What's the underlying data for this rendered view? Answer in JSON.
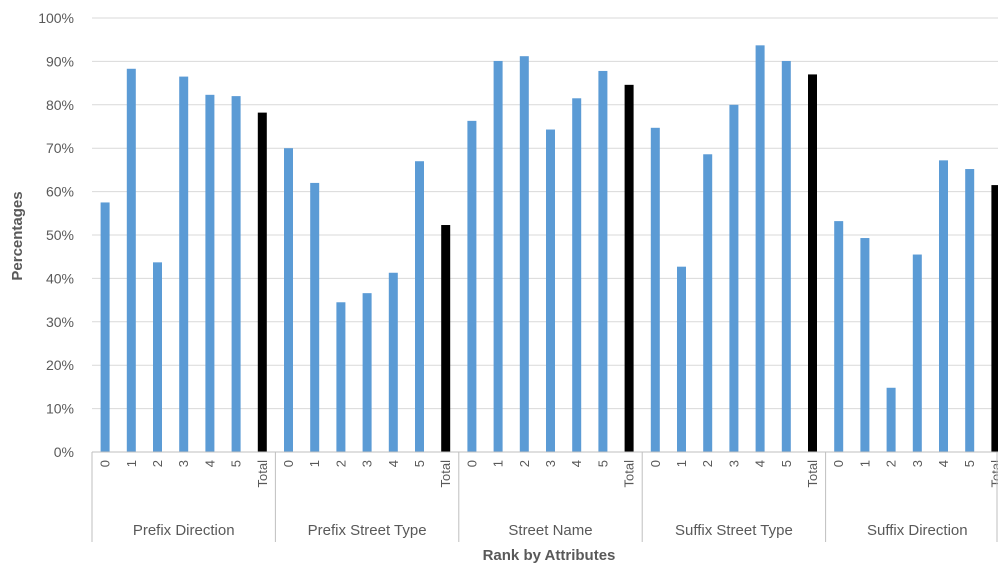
{
  "chart_data": {
    "type": "bar",
    "title": "",
    "xlabel": "Rank by Attributes",
    "ylabel": "Percentages",
    "ylim": [
      0,
      100
    ],
    "yticks": [
      "0%",
      "10%",
      "20%",
      "30%",
      "40%",
      "50%",
      "60%",
      "70%",
      "80%",
      "90%",
      "100%"
    ],
    "grid": true,
    "legend": "none",
    "colors": {
      "rank": "#5b9bd5",
      "total": "#000000",
      "grid": "#d9d9d9",
      "axis": "#bfbfbf"
    },
    "groups": [
      {
        "name": "Prefix Direction",
        "categories": [
          "0",
          "1",
          "2",
          "3",
          "4",
          "5",
          "Total"
        ],
        "values": [
          57.5,
          88.3,
          43.7,
          86.5,
          82.3,
          82.0,
          78.2
        ]
      },
      {
        "name": "Prefix Street Type",
        "categories": [
          "0",
          "1",
          "2",
          "3",
          "4",
          "5",
          "Total"
        ],
        "values": [
          70.0,
          62.0,
          34.5,
          36.6,
          41.3,
          67.0,
          52.3
        ]
      },
      {
        "name": "Street Name",
        "categories": [
          "0",
          "1",
          "2",
          "3",
          "4",
          "5",
          "Total"
        ],
        "values": [
          76.3,
          90.1,
          91.2,
          74.3,
          81.5,
          87.8,
          84.6
        ]
      },
      {
        "name": "Suffix Street Type",
        "categories": [
          "0",
          "1",
          "2",
          "3",
          "4",
          "5",
          "Total"
        ],
        "values": [
          74.7,
          42.7,
          68.6,
          80.0,
          93.7,
          90.1,
          87.0
        ]
      },
      {
        "name": "Suffix Direction",
        "categories": [
          "0",
          "1",
          "2",
          "3",
          "4",
          "5",
          "Total"
        ],
        "values": [
          53.2,
          49.3,
          14.8,
          45.5,
          67.2,
          65.2,
          61.5
        ]
      }
    ]
  }
}
